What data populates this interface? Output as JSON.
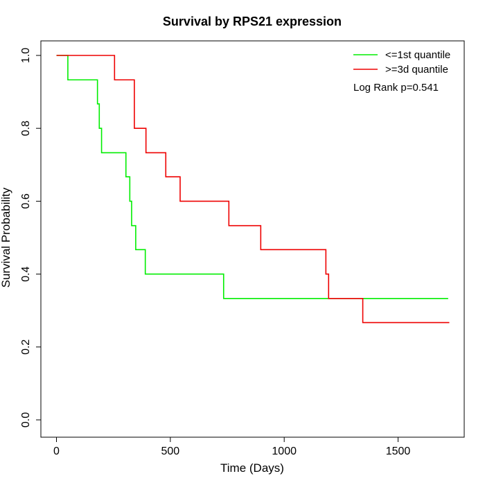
{
  "chart_data": {
    "type": "line",
    "title": "Survival by RPS21 expression",
    "xlabel": "Time (Days)",
    "ylabel": "Survival Probability",
    "xlim": [
      0,
      1750
    ],
    "ylim": [
      0,
      1.0
    ],
    "xticks": [
      0,
      500,
      1000,
      1500
    ],
    "yticks": [
      0.0,
      0.2,
      0.4,
      0.6,
      0.8,
      1.0
    ],
    "xtick_labels": [
      "0",
      "500",
      "1000",
      "1500"
    ],
    "ytick_labels": [
      "0.0",
      "0.2",
      "0.4",
      "0.6",
      "0.8",
      "1.0"
    ],
    "grid": false,
    "legend_position": "top-right",
    "annotation": "Log Rank p=0.541",
    "series": [
      {
        "name": "<=1st quantile",
        "color": "#00ee00",
        "step_x": [
          0,
          50,
          180,
          188,
          198,
          305,
          322,
          330,
          333,
          348,
          390,
          734,
          1720
        ],
        "step_y": [
          1.0,
          0.933,
          0.867,
          0.8,
          0.733,
          0.667,
          0.6,
          0.533,
          0.533,
          0.467,
          0.4,
          0.333,
          0.333
        ]
      },
      {
        "name": ">=3d quantile",
        "color": "#ee0000",
        "step_x": [
          0,
          255,
          342,
          393,
          480,
          543,
          757,
          897,
          1183,
          1195,
          1345,
          1725
        ],
        "step_y": [
          1.0,
          0.933,
          0.8,
          0.733,
          0.667,
          0.6,
          0.533,
          0.467,
          0.4,
          0.333,
          0.267,
          0.267
        ]
      }
    ]
  }
}
